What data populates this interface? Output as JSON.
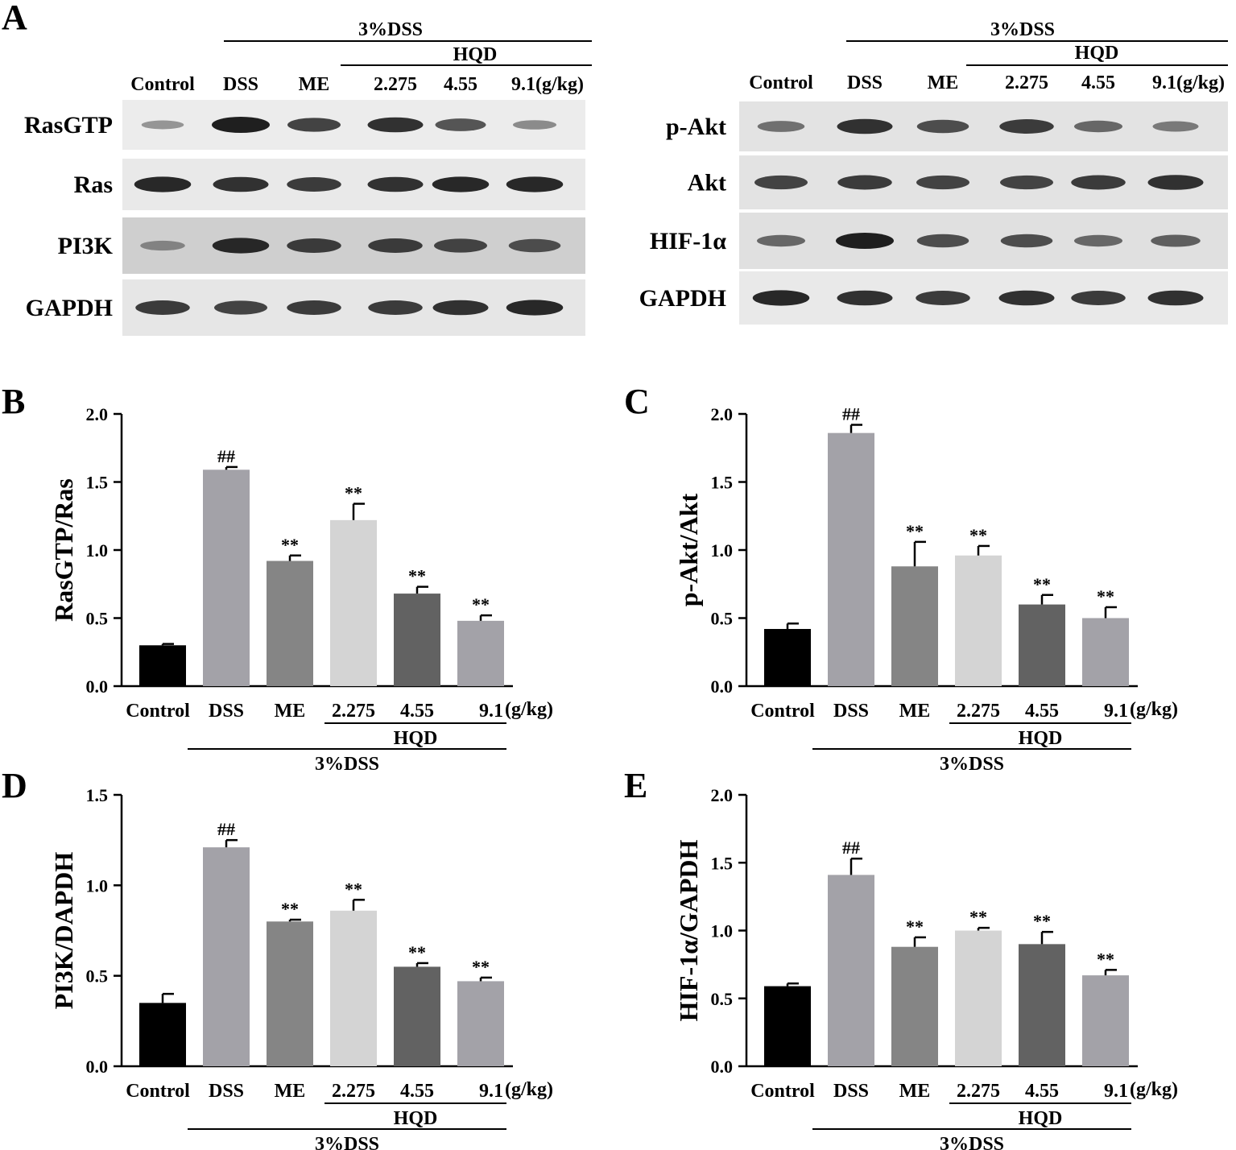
{
  "panel_letters": {
    "a": "A",
    "b": "B",
    "c": "C",
    "d": "D",
    "e": "E"
  },
  "blots": [
    {
      "treatment_label": "3%DSS",
      "hqd_label": "HQD",
      "lanes": [
        "Control",
        "DSS",
        "ME",
        "2.275",
        "4.55",
        "9.1(g/kg)"
      ],
      "rows": [
        {
          "name": "RasGTP",
          "bg": "#ececec",
          "intensity": [
            0.35,
            1.0,
            0.8,
            0.9,
            0.7,
            0.4
          ]
        },
        {
          "name": "Ras",
          "bg": "#e9e9e9",
          "intensity": [
            0.95,
            0.9,
            0.85,
            0.9,
            0.95,
            0.95
          ]
        },
        {
          "name": "PI3K",
          "bg": "#cfcfcf",
          "intensity": [
            0.45,
            0.95,
            0.85,
            0.85,
            0.8,
            0.75
          ]
        },
        {
          "name": "GAPDH",
          "bg": "#e6e6e6",
          "intensity": [
            0.85,
            0.8,
            0.85,
            0.85,
            0.9,
            0.95
          ]
        }
      ]
    },
    {
      "treatment_label": "3%DSS",
      "hqd_label": "HQD",
      "lanes": [
        "Control",
        "DSS",
        "ME",
        "2.275",
        "4.55",
        "9.1(g/kg)"
      ],
      "rows": [
        {
          "name": "p-Akt",
          "bg": "#e3e3e3",
          "intensity": [
            0.55,
            0.9,
            0.75,
            0.85,
            0.6,
            0.5
          ]
        },
        {
          "name": "Akt",
          "bg": "#e3e3e3",
          "intensity": [
            0.8,
            0.85,
            0.8,
            0.8,
            0.85,
            0.9
          ]
        },
        {
          "name": "HIF-1α",
          "bg": "#e0e0e0",
          "intensity": [
            0.6,
            1.0,
            0.75,
            0.75,
            0.6,
            0.65
          ]
        },
        {
          "name": "GAPDH",
          "bg": "#e9e9e9",
          "intensity": [
            0.95,
            0.9,
            0.85,
            0.9,
            0.85,
            0.9
          ]
        }
      ]
    }
  ],
  "chart_data": [
    {
      "type": "bar",
      "panel": "B",
      "ylabel": "RasGTP/Ras",
      "categories": [
        "Control",
        "DSS",
        "ME",
        "2.275",
        "4.55",
        "9.1"
      ],
      "unit_label": "(g/kg)",
      "group_labels": {
        "hqd": "HQD",
        "dss": "3%DSS"
      },
      "values": [
        0.3,
        1.59,
        0.92,
        1.22,
        0.68,
        0.48
      ],
      "errors": [
        0.01,
        0.02,
        0.04,
        0.12,
        0.05,
        0.04
      ],
      "annotations": [
        "",
        "##",
        "**",
        "**",
        "**",
        "**"
      ],
      "colors": [
        "#000000",
        "#a3a2a8",
        "#858585",
        "#d4d4d4",
        "#626262",
        "#a3a2a8"
      ],
      "ylim": [
        0,
        2.0
      ],
      "yticks": [
        "0.0",
        "0.5",
        "1.0",
        "1.5",
        "2.0"
      ]
    },
    {
      "type": "bar",
      "panel": "C",
      "ylabel": "p-Akt/Akt",
      "categories": [
        "Control",
        "DSS",
        "ME",
        "2.275",
        "4.55",
        "9.1"
      ],
      "unit_label": "(g/kg)",
      "group_labels": {
        "hqd": "HQD",
        "dss": "3%DSS"
      },
      "values": [
        0.42,
        1.86,
        0.88,
        0.96,
        0.6,
        0.5
      ],
      "errors": [
        0.04,
        0.06,
        0.18,
        0.07,
        0.07,
        0.08
      ],
      "annotations": [
        "",
        "##",
        "**",
        "**",
        "**",
        "**"
      ],
      "colors": [
        "#000000",
        "#a3a2a8",
        "#858585",
        "#d4d4d4",
        "#626262",
        "#a3a2a8"
      ],
      "ylim": [
        0,
        2.0
      ],
      "yticks": [
        "0.0",
        "0.5",
        "1.0",
        "1.5",
        "2.0"
      ]
    },
    {
      "type": "bar",
      "panel": "D",
      "ylabel": "PI3K/DAPDH",
      "categories": [
        "Control",
        "DSS",
        "ME",
        "2.275",
        "4.55",
        "9.1"
      ],
      "unit_label": "(g/kg)",
      "group_labels": {
        "hqd": "HQD",
        "dss": "3%DSS"
      },
      "values": [
        0.35,
        1.21,
        0.8,
        0.86,
        0.55,
        0.47
      ],
      "errors": [
        0.05,
        0.04,
        0.01,
        0.06,
        0.02,
        0.02
      ],
      "annotations": [
        "",
        "##",
        "**",
        "**",
        "**",
        "**"
      ],
      "colors": [
        "#000000",
        "#a3a2a8",
        "#858585",
        "#d4d4d4",
        "#626262",
        "#a3a2a8"
      ],
      "ylim": [
        0,
        1.5
      ],
      "yticks": [
        "0.0",
        "0.5",
        "1.0",
        "1.5"
      ]
    },
    {
      "type": "bar",
      "panel": "E",
      "ylabel": "HIF-1α/GAPDH",
      "categories": [
        "Control",
        "DSS",
        "ME",
        "2.275",
        "4.55",
        "9.1"
      ],
      "unit_label": "(g/kg)",
      "group_labels": {
        "hqd": "HQD",
        "dss": "3%DSS"
      },
      "values": [
        0.59,
        1.41,
        0.88,
        1.0,
        0.9,
        0.67
      ],
      "errors": [
        0.02,
        0.12,
        0.07,
        0.02,
        0.09,
        0.04
      ],
      "annotations": [
        "",
        "##",
        "**",
        "**",
        "**",
        "**"
      ],
      "colors": [
        "#000000",
        "#a3a2a8",
        "#858585",
        "#d4d4d4",
        "#626262",
        "#a3a2a8"
      ],
      "ylim": [
        0,
        2.0
      ],
      "yticks": [
        "0.0",
        "0.5",
        "1.0",
        "1.5",
        "2.0"
      ]
    }
  ]
}
